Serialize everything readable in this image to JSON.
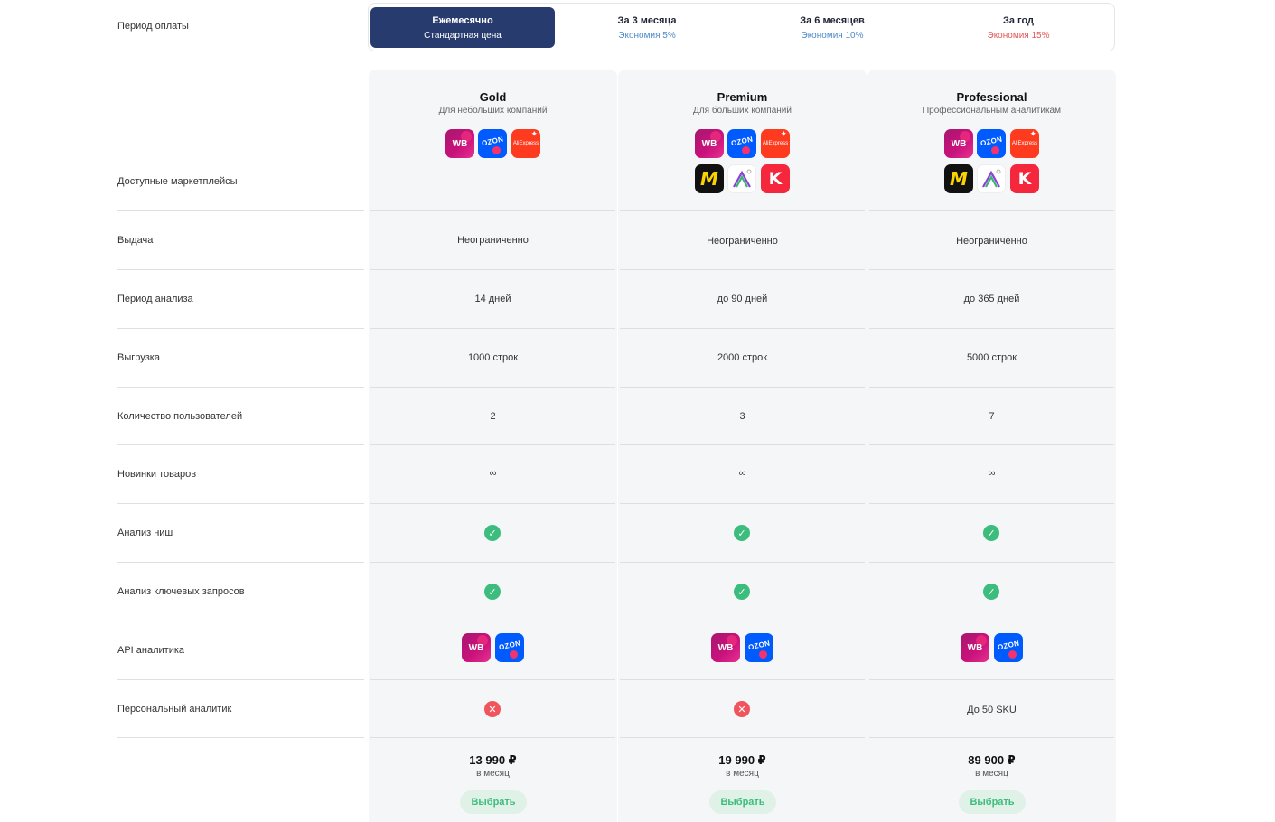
{
  "billing": {
    "label": "Период оплаты",
    "options": [
      {
        "title": "Ежемесячно",
        "subtitle": "Стандартная цена",
        "active": true
      },
      {
        "title": "За 3 месяца",
        "subtitle": "Экономия 5%"
      },
      {
        "title": "За 6 месяцев",
        "subtitle": "Экономия 10%"
      },
      {
        "title": "За год",
        "subtitle": "Экономия 15%"
      }
    ]
  },
  "rows": [
    "Доступные маркетплейсы",
    "Выдача",
    "Период анализа",
    "Выгрузка",
    "Количество пользователей",
    "Новинки товаров",
    "Анализ ниш",
    "Анализ ключевых запросов",
    "API аналитика",
    "Персональный аналитик"
  ],
  "marketplace_labels": {
    "wb": "WB",
    "ozon": "OZON",
    "ali": "AliExpress"
  },
  "plans": [
    {
      "name": "Gold",
      "subtitle": "Для небольших компаний",
      "marketplaces": [
        "wb",
        "ozon",
        "ali"
      ],
      "output": "Неограниченно",
      "period": "14 дней",
      "export": "1000 строк",
      "users": "2",
      "new_items": "∞",
      "niche": "check-icon",
      "keywords": "check-icon",
      "api": [
        "wb",
        "ozon"
      ],
      "analyst": "cross-icon",
      "price": "13 990 ₽",
      "per": "в месяц",
      "button": "Выбрать"
    },
    {
      "name": "Premium",
      "subtitle": "Для больших компаний",
      "marketplaces": [
        "wb",
        "ozon",
        "ali",
        "yandex-market",
        "megamarket",
        "kazanexpress"
      ],
      "output": "Неограниченно",
      "period": "до 90 дней",
      "export": "2000 строк",
      "users": "3",
      "new_items": "∞",
      "niche": "check-icon",
      "keywords": "check-icon",
      "api": [
        "wb",
        "ozon"
      ],
      "analyst": "cross-icon",
      "price": "19 990 ₽",
      "per": "в месяц",
      "button": "Выбрать"
    },
    {
      "name": "Professional",
      "subtitle": "Профессиональным аналитикам",
      "marketplaces": [
        "wb",
        "ozon",
        "ali",
        "yandex-market",
        "megamarket",
        "kazanexpress"
      ],
      "output": "Неограниченно",
      "period": "до 365 дней",
      "export": "5000 строк",
      "users": "7",
      "new_items": "∞",
      "niche": "check-icon",
      "keywords": "check-icon",
      "api": [
        "wb",
        "ozon"
      ],
      "analyst": "До 50 SKU",
      "price": "89 900 ₽",
      "per": "в месяц",
      "button": "Выбрать"
    }
  ],
  "colors": {
    "active_tab": "#283b6e",
    "check": "#3dbd7d",
    "cross": "#f0545c",
    "button_bg": "#e0f2e8"
  }
}
